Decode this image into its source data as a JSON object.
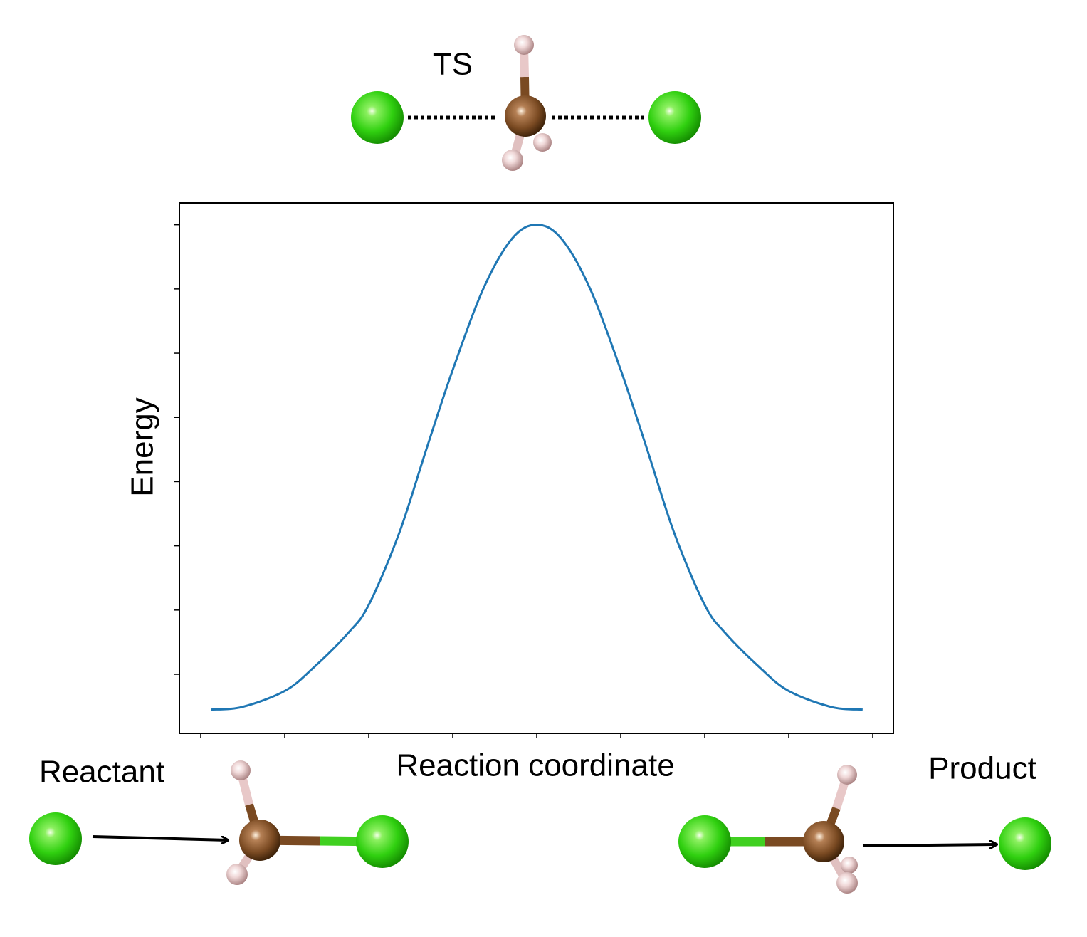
{
  "chart_data": {
    "type": "line",
    "xlabel": "Reaction coordinate",
    "ylabel": "Energy",
    "annotations": [
      "TS",
      "Reactant",
      "Product"
    ],
    "x": [
      0.12,
      0.49,
      1.0,
      1.34,
      1.76,
      2.0,
      2.36,
      2.69,
      3.0,
      3.37,
      3.71,
      4.0,
      4.29,
      4.63,
      5.0,
      5.31,
      5.64,
      6.0,
      6.24,
      6.66,
      7.0,
      7.51,
      7.88
    ],
    "values": [
      -0.55,
      -0.51,
      -0.26,
      0.1,
      0.65,
      1.08,
      2.19,
      3.52,
      4.74,
      6.02,
      6.79,
      7.0,
      6.79,
      6.02,
      4.74,
      3.52,
      2.19,
      1.08,
      0.65,
      0.1,
      -0.26,
      -0.51,
      -0.55
    ],
    "color": "#1f77b4",
    "xlim": [
      -0.254,
      8.246
    ],
    "ylim": [
      -0.92,
      7.34
    ],
    "xticks": [
      0,
      1,
      2,
      3,
      4,
      5,
      6,
      7,
      8
    ],
    "yticks": [
      0,
      1,
      2,
      3,
      4,
      5,
      6,
      7
    ],
    "grid": false
  }
}
